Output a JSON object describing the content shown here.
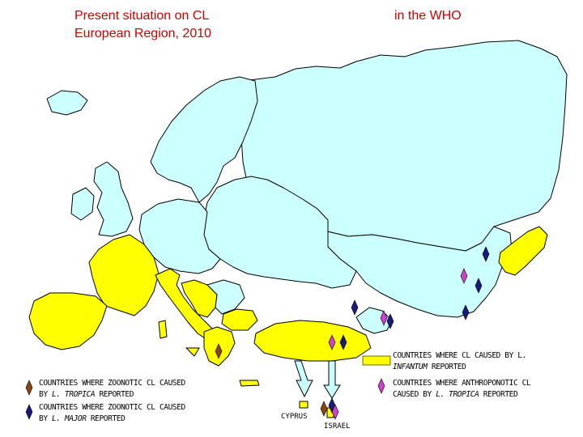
{
  "title": {
    "left_line1": "Present situation on CL",
    "left_line2": "European Region, 2010",
    "right": "in the WHO"
  },
  "colors": {
    "endemic_infantum": "#ffff00",
    "other_country": "#ccffff",
    "border": "#000000",
    "sea": "#ffffff",
    "marker_tropica_zoonotic": "#8b4513",
    "marker_major_zoonotic": "#1a1a7a",
    "marker_tropica_anthroponotic": "#cc44cc"
  },
  "legend": {
    "infantum": {
      "line1": "COUNTRIES WHERE CL CAUSED BY L.",
      "line2_italic": "INFANTUM",
      "line2_rest": " REPORTED",
      "icon": "yellow-rectangle"
    },
    "anthroponotic_tropica": {
      "line1": "COUNTRIES WHERE ANTHROPONOTIC CL",
      "line2_pre": "CAUSED BY ",
      "line2_italic": "L. TROPICA",
      "line2_rest": " REPORTED",
      "icon": "magenta-diamond"
    },
    "zoonotic_tropica": {
      "line1": "COUNTRIES WHERE ZOONOTIC CL CAUSED",
      "line2_pre": "BY ",
      "line2_italic": "L. TROPICA",
      "line2_rest": " REPORTED",
      "icon": "brown-diamond"
    },
    "zoonotic_major": {
      "line1": "COUNTRIES WHERE ZOONOTIC CL CAUSED",
      "line2_pre": "BY ",
      "line2_italic": "L. MAJOR",
      "line2_rest": "  REPORTED",
      "icon": "navy-diamond"
    }
  },
  "labels": {
    "cyprus": "CYPRUS",
    "israel": "ISRAEL"
  }
}
